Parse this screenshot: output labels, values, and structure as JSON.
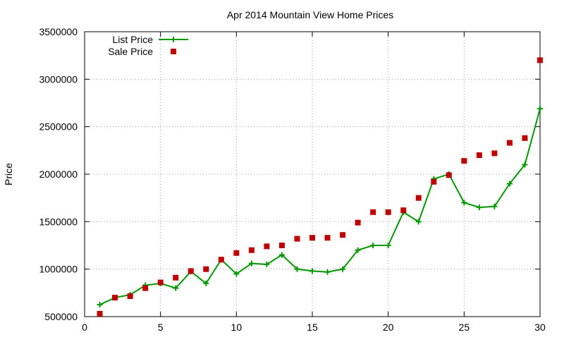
{
  "chart_data": {
    "type": "line",
    "title": "Apr 2014 Mountain View Home Prices",
    "xlabel": "",
    "ylabel": "Price",
    "xlim": [
      0,
      30
    ],
    "ylim": [
      500000,
      3500000
    ],
    "xticks": [
      0,
      5,
      10,
      15,
      20,
      25,
      30
    ],
    "yticks": [
      500000,
      1000000,
      1500000,
      2000000,
      2500000,
      3000000,
      3500000
    ],
    "grid": true,
    "legend_position": "top-left",
    "series": [
      {
        "name": "List Price",
        "style": "line-with-plus-markers",
        "color": "#009900",
        "x": [
          1,
          2,
          3,
          4,
          5,
          6,
          7,
          8,
          9,
          10,
          11,
          12,
          13,
          14,
          15,
          16,
          17,
          18,
          19,
          20,
          21,
          22,
          23,
          24,
          25,
          26,
          27,
          28,
          29,
          30
        ],
        "values": [
          625000,
          700000,
          730000,
          830000,
          850000,
          800000,
          975000,
          850000,
          1100000,
          950000,
          1060000,
          1050000,
          1150000,
          1000000,
          980000,
          970000,
          1000000,
          1200000,
          1250000,
          1250000,
          1600000,
          1500000,
          1950000,
          2000000,
          1700000,
          1650000,
          1660000,
          1900000,
          2100000,
          2690000
        ]
      },
      {
        "name": "Sale Price",
        "style": "square-markers",
        "color": "#c00000",
        "x": [
          1,
          2,
          3,
          4,
          5,
          6,
          7,
          8,
          9,
          10,
          11,
          12,
          13,
          14,
          15,
          16,
          17,
          18,
          19,
          20,
          21,
          22,
          23,
          24,
          25,
          26,
          27,
          28,
          29,
          30
        ],
        "values": [
          530000,
          700000,
          715000,
          800000,
          860000,
          910000,
          980000,
          1000000,
          1100000,
          1170000,
          1200000,
          1240000,
          1250000,
          1320000,
          1330000,
          1330000,
          1360000,
          1490000,
          1600000,
          1600000,
          1620000,
          1750000,
          1920000,
          1990000,
          2140000,
          2200000,
          2220000,
          2330000,
          2380000,
          3200000
        ]
      }
    ]
  }
}
